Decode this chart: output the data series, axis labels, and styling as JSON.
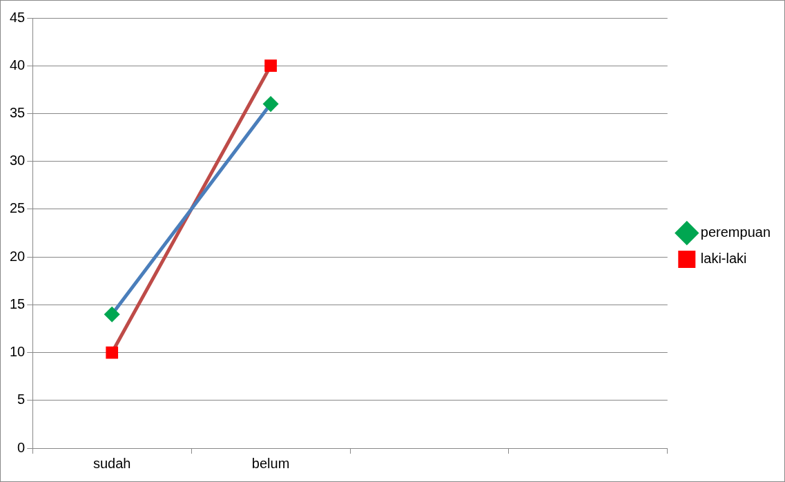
{
  "chart_data": {
    "type": "line",
    "categories": [
      "sudah",
      "belum",
      null,
      null
    ],
    "series": [
      {
        "name": "perempuan",
        "color": "#4a7ebb",
        "colors": [
          "#00a651",
          "#00a651",
          null,
          null
        ],
        "marker": "diamond",
        "values": [
          14,
          36,
          null,
          null
        ]
      },
      {
        "name": "laki-laki",
        "color": "#be4b48",
        "colors": [
          "#ff0000",
          "#ff0000",
          null,
          null
        ],
        "marker": "square",
        "values": [
          10,
          40,
          null,
          null
        ]
      }
    ],
    "ylim": [
      0,
      45
    ],
    "yticks": [
      0,
      5,
      10,
      15,
      20,
      25,
      30,
      35,
      40,
      45
    ],
    "grid": "y",
    "legend": "right",
    "line_style": "solid"
  }
}
